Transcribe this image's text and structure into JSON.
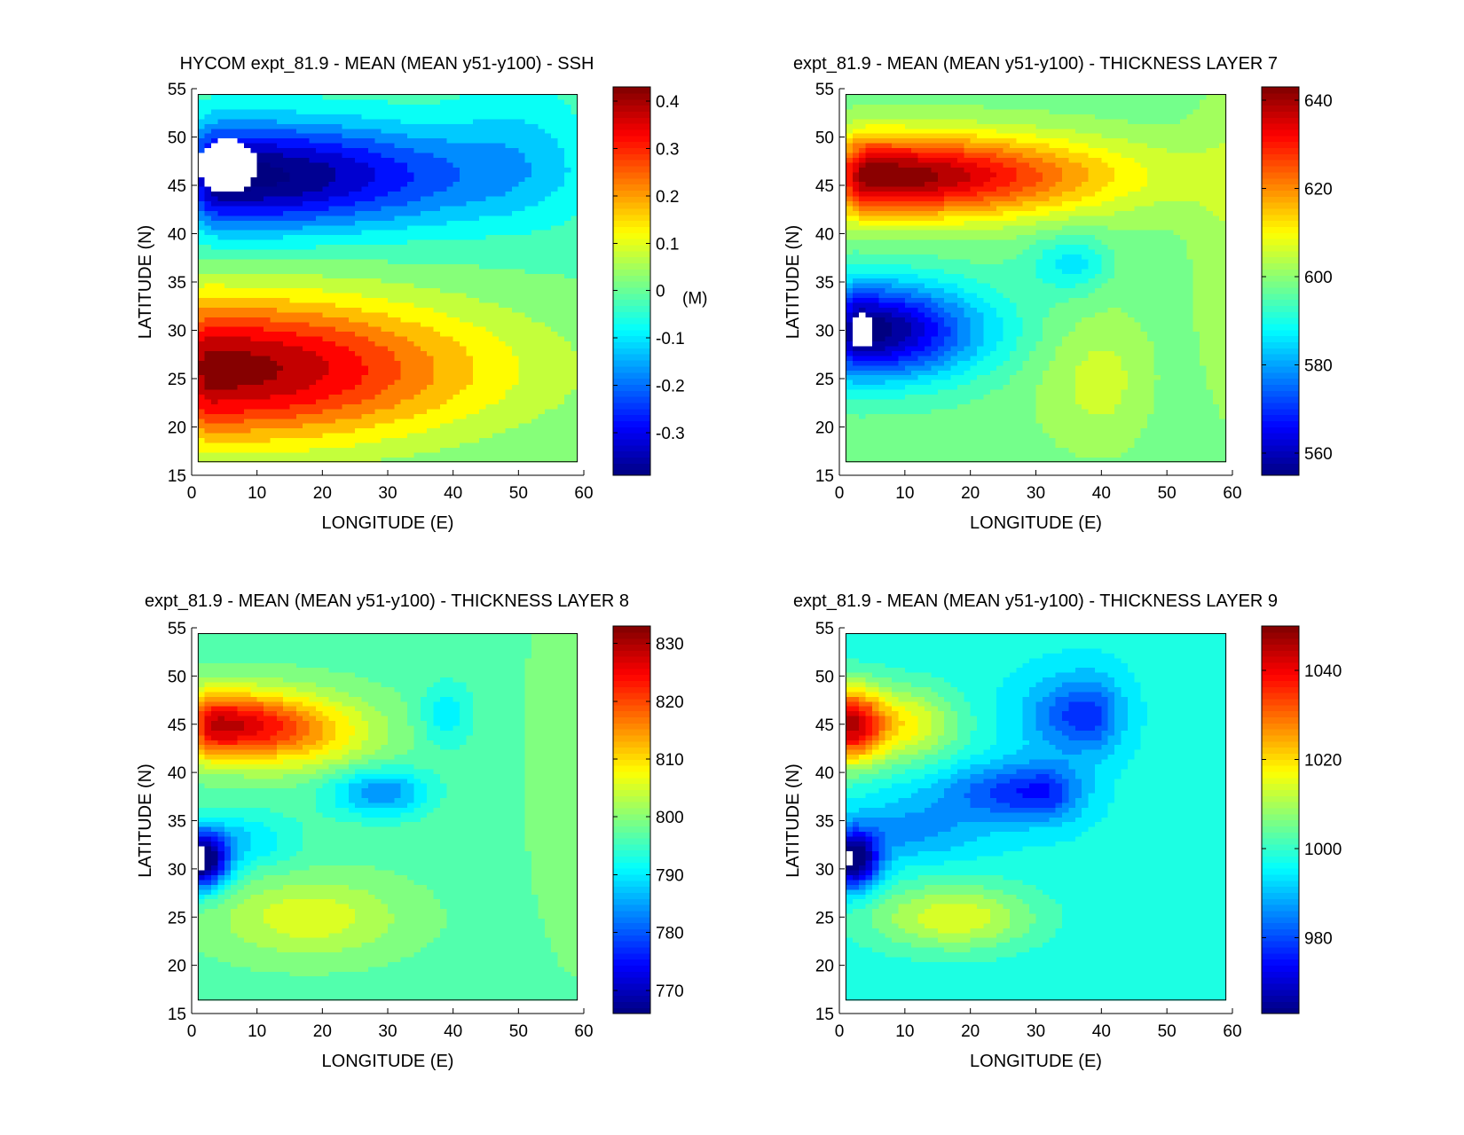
{
  "chart_data": [
    {
      "type": "heatmap",
      "title": "HYCOM expt_81.9 - MEAN (MEAN y51-y100) - SSH",
      "xlabel": "LONGITUDE (E)",
      "ylabel": "LATITUDE (N)",
      "xlim": [
        0,
        60
      ],
      "ylim": [
        15,
        55
      ],
      "xticks": [
        0,
        10,
        20,
        30,
        40,
        50,
        60
      ],
      "yticks": [
        15,
        20,
        25,
        30,
        35,
        40,
        45,
        50,
        55
      ],
      "data_extent": {
        "lon": [
          1,
          59
        ],
        "lat": [
          16.4,
          54.4
        ]
      },
      "clim": [
        -0.39,
        0.43
      ],
      "colorbar_ticks": [
        -0.3,
        -0.2,
        -0.1,
        0,
        0.1,
        0.2,
        0.3,
        0.4
      ],
      "colorbar_tick_labels": [
        "-0.3",
        "-0.2",
        "-0.1",
        "0",
        "0.1",
        "0.2",
        "0.3",
        "0.4"
      ],
      "colorbar_unit": "(M)",
      "contour_interval": 0.05,
      "field": {
        "base": -0.01,
        "blobs": [
          {
            "lon": 5,
            "lat": 46,
            "amp": -0.42,
            "sx_w": 6,
            "sx_e": 38,
            "sy": 5.5
          },
          {
            "lon": 50,
            "lat": 50,
            "amp": -0.06,
            "sx_w": 10,
            "sx_e": 10,
            "sy": 8
          },
          {
            "lon": 3,
            "lat": 26,
            "amp": 0.44,
            "sx_w": 6,
            "sx_e": 40,
            "sy": 7.5
          }
        ],
        "masked": [
          {
            "lon": 5.5,
            "lat": 47,
            "rlon": 4.5,
            "rlat": 2.8
          }
        ]
      }
    },
    {
      "type": "heatmap",
      "title": "expt_81.9 - MEAN (MEAN y51-y100) - THICKNESS LAYER 7",
      "xlabel": "LONGITUDE (E)",
      "ylabel": "LATITUDE (N)",
      "xlim": [
        0,
        60
      ],
      "ylim": [
        15,
        55
      ],
      "xticks": [
        0,
        10,
        20,
        30,
        40,
        50,
        60
      ],
      "yticks": [
        15,
        20,
        25,
        30,
        35,
        40,
        45,
        50,
        55
      ],
      "data_extent": {
        "lon": [
          1,
          59
        ],
        "lat": [
          16.4,
          54.4
        ]
      },
      "clim": [
        555,
        643
      ],
      "colorbar_ticks": [
        560,
        580,
        600,
        620,
        640
      ],
      "colorbar_tick_labels": [
        "560",
        "580",
        "600",
        "620",
        "640"
      ],
      "colorbar_unit": "",
      "contour_interval": 4,
      "field": {
        "base": 598,
        "blobs": [
          {
            "lon": 5,
            "lat": 46,
            "amp": 46,
            "sx_w": 6,
            "sx_e": 34,
            "sy": 4.2
          },
          {
            "lon": 3,
            "lat": 30,
            "amp": -46,
            "sx_w": 4,
            "sx_e": 18,
            "sy": 5
          },
          {
            "lon": 36,
            "lat": 37,
            "amp": -12,
            "sx_w": 7,
            "sx_e": 5,
            "sy": 3
          },
          {
            "lon": 40,
            "lat": 25,
            "amp": 8,
            "sx_w": 10,
            "sx_e": 7,
            "sy": 7
          },
          {
            "lon": 62,
            "lat": 40,
            "amp": 6,
            "sx_w": 8,
            "sx_e": 8,
            "sy": 20
          }
        ],
        "masked": [
          {
            "lon": 3.5,
            "lat": 30,
            "rlon": 1.8,
            "rlat": 1.8
          }
        ]
      }
    },
    {
      "type": "heatmap",
      "title": "expt_81.9 - MEAN (MEAN y51-y100) - THICKNESS LAYER 8",
      "xlabel": "LONGITUDE (E)",
      "ylabel": "LATITUDE (N)",
      "xlim": [
        0,
        60
      ],
      "ylim": [
        15,
        55
      ],
      "xticks": [
        0,
        10,
        20,
        30,
        40,
        50,
        60
      ],
      "yticks": [
        15,
        20,
        25,
        30,
        35,
        40,
        45,
        50,
        55
      ],
      "data_extent": {
        "lon": [
          1,
          59
        ],
        "lat": [
          16.4,
          54.4
        ]
      },
      "clim": [
        766,
        833
      ],
      "colorbar_ticks": [
        770,
        780,
        790,
        800,
        810,
        820,
        830
      ],
      "colorbar_tick_labels": [
        "770",
        "780",
        "790",
        "800",
        "810",
        "820",
        "830"
      ],
      "colorbar_unit": "",
      "contour_interval": 3,
      "field": {
        "base": 797,
        "blobs": [
          {
            "lon": 3,
            "lat": 45,
            "amp": 30,
            "sx_w": 3,
            "sx_e": 14,
            "sy": 3.5
          },
          {
            "lon": 18,
            "lat": 44,
            "amp": 10,
            "sx_w": 12,
            "sx_e": 12,
            "sy": 4
          },
          {
            "lon": 1.5,
            "lat": 31,
            "amp": -36,
            "sx_w": 2,
            "sx_e": 4,
            "sy": 3
          },
          {
            "lon": 8,
            "lat": 33,
            "amp": -8,
            "sx_w": 6,
            "sx_e": 8,
            "sy": 3
          },
          {
            "lon": 29,
            "lat": 38,
            "amp": -14,
            "sx_w": 8,
            "sx_e": 7,
            "sy": 2.5
          },
          {
            "lon": 39,
            "lat": 46,
            "amp": -7,
            "sx_w": 4,
            "sx_e": 4,
            "sy": 3.5
          },
          {
            "lon": 18,
            "lat": 25,
            "amp": 9,
            "sx_w": 14,
            "sx_e": 14,
            "sy": 4
          },
          {
            "lon": 60,
            "lat": 42,
            "amp": 4,
            "sx_w": 8,
            "sx_e": 8,
            "sy": 20
          }
        ],
        "masked": [
          {
            "lon": 1.5,
            "lat": 31,
            "rlon": 0.5,
            "rlat": 1.3
          }
        ]
      }
    },
    {
      "type": "heatmap",
      "title": "expt_81.9 - MEAN (MEAN y51-y100) - THICKNESS LAYER 9",
      "xlabel": "LONGITUDE (E)",
      "ylabel": "LATITUDE (N)",
      "xlim": [
        0,
        60
      ],
      "ylim": [
        15,
        55
      ],
      "xticks": [
        0,
        10,
        20,
        30,
        40,
        50,
        60
      ],
      "yticks": [
        15,
        20,
        25,
        30,
        35,
        40,
        45,
        50,
        55
      ],
      "data_extent": {
        "lon": [
          1,
          59
        ],
        "lat": [
          16.4,
          54.4
        ]
      },
      "clim": [
        963,
        1050
      ],
      "colorbar_ticks": [
        980,
        1000,
        1020,
        1040
      ],
      "colorbar_tick_labels": [
        "980",
        "1000",
        "1020",
        "1040"
      ],
      "colorbar_unit": "",
      "contour_interval": 4,
      "field": {
        "base": 997,
        "blobs": [
          {
            "lon": 1.5,
            "lat": 45,
            "amp": 42,
            "sx_w": 2,
            "sx_e": 5,
            "sy": 4
          },
          {
            "lon": 10,
            "lat": 45,
            "amp": 20,
            "sx_w": 8,
            "sx_e": 8,
            "sy": 4
          },
          {
            "lon": 38,
            "lat": 46,
            "amp": -20,
            "sx_w": 9,
            "sx_e": 5,
            "sy": 4
          },
          {
            "lon": 31,
            "lat": 38,
            "amp": -22,
            "sx_w": 15,
            "sx_e": 6,
            "sy": 3
          },
          {
            "lon": 2,
            "lat": 31,
            "amp": -40,
            "sx_w": 2,
            "sx_e": 4,
            "sy": 3
          },
          {
            "lon": 10,
            "lat": 34,
            "amp": -10,
            "sx_w": 8,
            "sx_e": 12,
            "sy": 3
          },
          {
            "lon": 18,
            "lat": 25,
            "amp": 18,
            "sx_w": 14,
            "sx_e": 12,
            "sy": 3.5
          }
        ],
        "masked": [
          {
            "lon": 1.2,
            "lat": 31,
            "rlon": 0.4,
            "rlat": 1.2
          }
        ]
      }
    }
  ]
}
